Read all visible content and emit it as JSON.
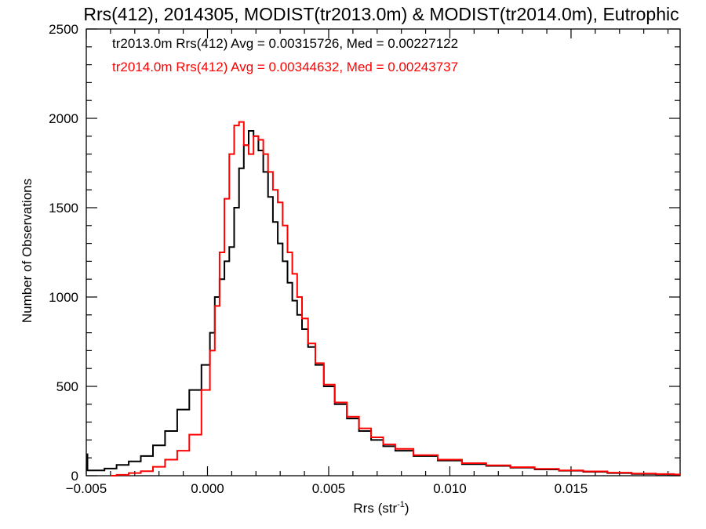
{
  "chart_data": {
    "type": "line",
    "title": "Rrs(412), 2014305, MODIST(tr2013.0m) & MODIST(tr2014.0m), Eutrophic",
    "xlabel_main": "Rrs (str",
    "xlabel_sup": "-1",
    "xlabel_end": ")",
    "ylabel": "Number of Observations",
    "xlim": [
      -0.005,
      0.0195
    ],
    "ylim": [
      0,
      2500
    ],
    "xticks": [
      -0.005,
      0.0,
      0.005,
      0.01,
      0.015
    ],
    "xtick_labels": [
      "−0.005",
      "0.000",
      "0.005",
      "0.010",
      "0.015"
    ],
    "yticks": [
      0,
      500,
      1000,
      1500,
      2000,
      2500
    ],
    "ytick_labels": [
      "0",
      "500",
      "1000",
      "1500",
      "2000",
      "2500"
    ],
    "grid": false,
    "legend_position": "top-left",
    "series": [
      {
        "name": "tr2013.0m Rrs(412) Avg = 0.00315726, Med = 0.00227122",
        "color": "#000000",
        "points": [
          [
            -0.005,
            120
          ],
          [
            -0.0049,
            30
          ],
          [
            -0.0045,
            30
          ],
          [
            -0.004,
            40
          ],
          [
            -0.0035,
            60
          ],
          [
            -0.003,
            80
          ],
          [
            -0.0025,
            110
          ],
          [
            -0.002,
            170
          ],
          [
            -0.0015,
            250
          ],
          [
            -0.001,
            370
          ],
          [
            -0.0005,
            480
          ],
          [
            0.0,
            620
          ],
          [
            0.0002,
            800
          ],
          [
            0.0004,
            1000
          ],
          [
            0.0006,
            1100
          ],
          [
            0.0008,
            1200
          ],
          [
            0.001,
            1280
          ],
          [
            0.0012,
            1500
          ],
          [
            0.0014,
            1720
          ],
          [
            0.0016,
            1850
          ],
          [
            0.0018,
            1930
          ],
          [
            0.002,
            1900
          ],
          [
            0.0022,
            1820
          ],
          [
            0.0024,
            1700
          ],
          [
            0.0026,
            1560
          ],
          [
            0.0028,
            1420
          ],
          [
            0.003,
            1300
          ],
          [
            0.0032,
            1200
          ],
          [
            0.0034,
            1080
          ],
          [
            0.0036,
            980
          ],
          [
            0.0038,
            900
          ],
          [
            0.004,
            820
          ],
          [
            0.0043,
            720
          ],
          [
            0.0046,
            620
          ],
          [
            0.005,
            500
          ],
          [
            0.0055,
            400
          ],
          [
            0.006,
            320
          ],
          [
            0.0065,
            250
          ],
          [
            0.007,
            200
          ],
          [
            0.0075,
            165
          ],
          [
            0.008,
            140
          ],
          [
            0.009,
            110
          ],
          [
            0.01,
            85
          ],
          [
            0.011,
            65
          ],
          [
            0.012,
            55
          ],
          [
            0.013,
            45
          ],
          [
            0.014,
            35
          ],
          [
            0.015,
            28
          ],
          [
            0.016,
            22
          ],
          [
            0.017,
            15
          ],
          [
            0.018,
            10
          ],
          [
            0.019,
            8
          ],
          [
            0.0195,
            6
          ]
        ]
      },
      {
        "name": "tr2014.0m Rrs(412) Avg = 0.00344632, Med = 0.00243737",
        "color": "#ff0000",
        "points": [
          [
            -0.004,
            0
          ],
          [
            -0.0035,
            5
          ],
          [
            -0.003,
            15
          ],
          [
            -0.0025,
            25
          ],
          [
            -0.002,
            50
          ],
          [
            -0.0015,
            90
          ],
          [
            -0.001,
            140
          ],
          [
            -0.0005,
            230
          ],
          [
            0.0,
            480
          ],
          [
            0.0002,
            700
          ],
          [
            0.0004,
            950
          ],
          [
            0.0006,
            1250
          ],
          [
            0.0008,
            1550
          ],
          [
            0.001,
            1800
          ],
          [
            0.0012,
            1960
          ],
          [
            0.0014,
            1980
          ],
          [
            0.0016,
            1850
          ],
          [
            0.0018,
            1800
          ],
          [
            0.002,
            1900
          ],
          [
            0.0022,
            1880
          ],
          [
            0.0024,
            1800
          ],
          [
            0.0026,
            1700
          ],
          [
            0.0028,
            1600
          ],
          [
            0.003,
            1530
          ],
          [
            0.0032,
            1400
          ],
          [
            0.0034,
            1250
          ],
          [
            0.0036,
            1130
          ],
          [
            0.0038,
            1000
          ],
          [
            0.004,
            880
          ],
          [
            0.0043,
            740
          ],
          [
            0.0046,
            630
          ],
          [
            0.005,
            510
          ],
          [
            0.0055,
            410
          ],
          [
            0.006,
            330
          ],
          [
            0.0065,
            265
          ],
          [
            0.007,
            215
          ],
          [
            0.0075,
            175
          ],
          [
            0.008,
            150
          ],
          [
            0.009,
            115
          ],
          [
            0.01,
            90
          ],
          [
            0.011,
            70
          ],
          [
            0.012,
            58
          ],
          [
            0.013,
            48
          ],
          [
            0.014,
            38
          ],
          [
            0.015,
            30
          ],
          [
            0.016,
            24
          ],
          [
            0.017,
            17
          ],
          [
            0.018,
            12
          ],
          [
            0.019,
            9
          ],
          [
            0.0195,
            7
          ]
        ]
      }
    ]
  }
}
